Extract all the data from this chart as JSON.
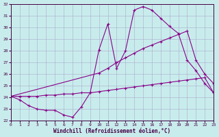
{
  "xlabel": "Windchill (Refroidissement éolien,°C)",
  "xlim": [
    0,
    23
  ],
  "ylim": [
    22,
    32
  ],
  "xticks": [
    0,
    1,
    2,
    3,
    4,
    5,
    6,
    7,
    8,
    9,
    10,
    11,
    12,
    13,
    14,
    15,
    16,
    17,
    18,
    19,
    20,
    21,
    22,
    23
  ],
  "yticks": [
    22,
    23,
    24,
    25,
    26,
    27,
    28,
    29,
    30,
    31,
    32
  ],
  "bg_color": "#c8ecec",
  "grid_color": "#aaaacc",
  "line_color": "#880088",
  "line1_x": [
    0,
    1,
    2,
    3,
    4,
    5,
    6,
    7,
    8,
    9,
    10,
    11,
    12,
    13,
    14,
    15,
    16,
    17,
    18,
    19,
    20,
    21,
    22,
    23
  ],
  "line1_y": [
    24.1,
    23.8,
    23.3,
    23.0,
    22.9,
    22.9,
    22.5,
    22.3,
    23.2,
    24.4,
    28.1,
    30.3,
    26.5,
    28.0,
    31.5,
    31.8,
    31.5,
    30.8,
    30.1,
    29.5,
    27.2,
    26.3,
    25.2,
    24.4
  ],
  "line2_x": [
    0,
    10,
    11,
    12,
    13,
    14,
    15,
    16,
    17,
    18,
    19,
    20,
    21,
    22,
    23
  ],
  "line2_y": [
    24.1,
    26.1,
    26.5,
    27.0,
    27.4,
    27.8,
    28.2,
    28.5,
    28.8,
    29.1,
    29.4,
    29.7,
    27.2,
    26.0,
    25.2
  ],
  "line3_x": [
    0,
    1,
    2,
    3,
    4,
    5,
    6,
    7,
    8,
    9,
    10,
    11,
    12,
    13,
    14,
    15,
    16,
    17,
    18,
    19,
    20,
    21,
    22,
    23
  ],
  "line3_y": [
    24.1,
    24.1,
    24.1,
    24.1,
    24.2,
    24.2,
    24.3,
    24.3,
    24.4,
    24.4,
    24.5,
    24.6,
    24.7,
    24.8,
    24.9,
    25.0,
    25.1,
    25.2,
    25.3,
    25.4,
    25.5,
    25.6,
    25.7,
    24.4
  ]
}
